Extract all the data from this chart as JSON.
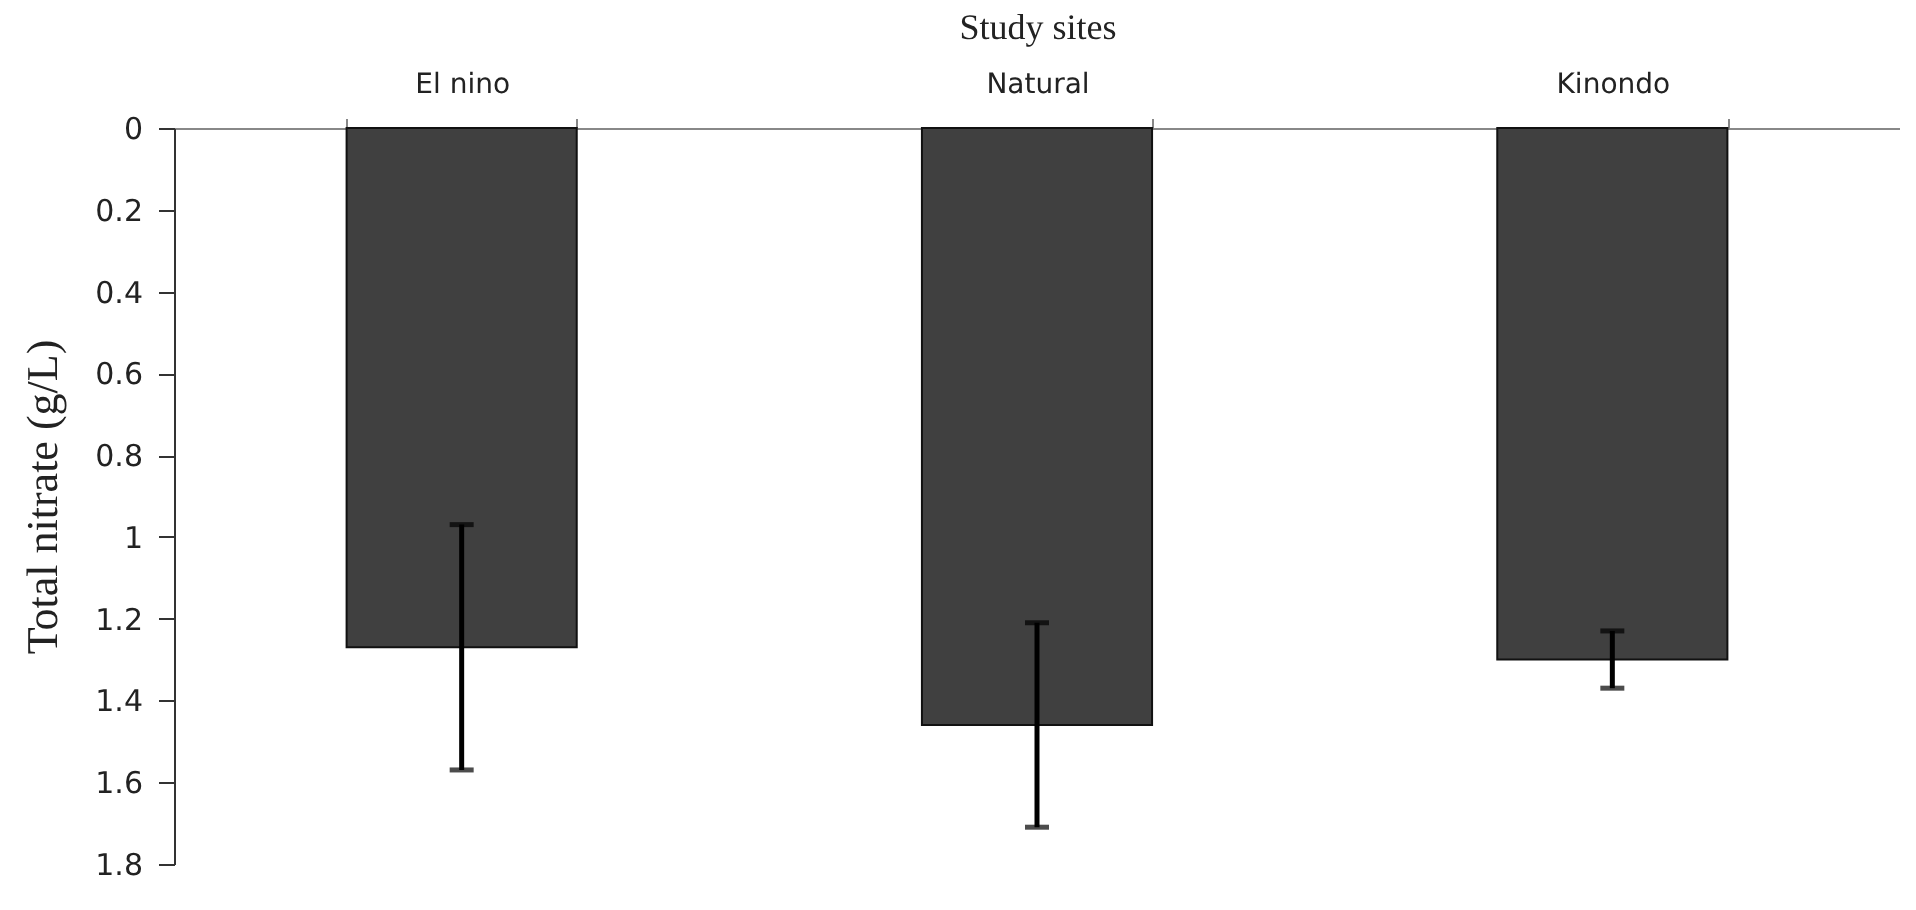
{
  "chart_data": {
    "type": "bar",
    "xlabel": "Study sites",
    "ylabel": "Total nitrate  (g/L)",
    "categories": [
      "El nino",
      "Natural",
      "Kinondo"
    ],
    "values": [
      1.27,
      1.46,
      1.3
    ],
    "errors": [
      0.3,
      0.25,
      0.07
    ],
    "color": "#404040",
    "ylim": [
      1.8,
      0
    ],
    "yticks": [
      0,
      0.2,
      0.4,
      0.6,
      0.8,
      1,
      1.2,
      1.4,
      1.6,
      1.8
    ],
    "grid": false
  }
}
